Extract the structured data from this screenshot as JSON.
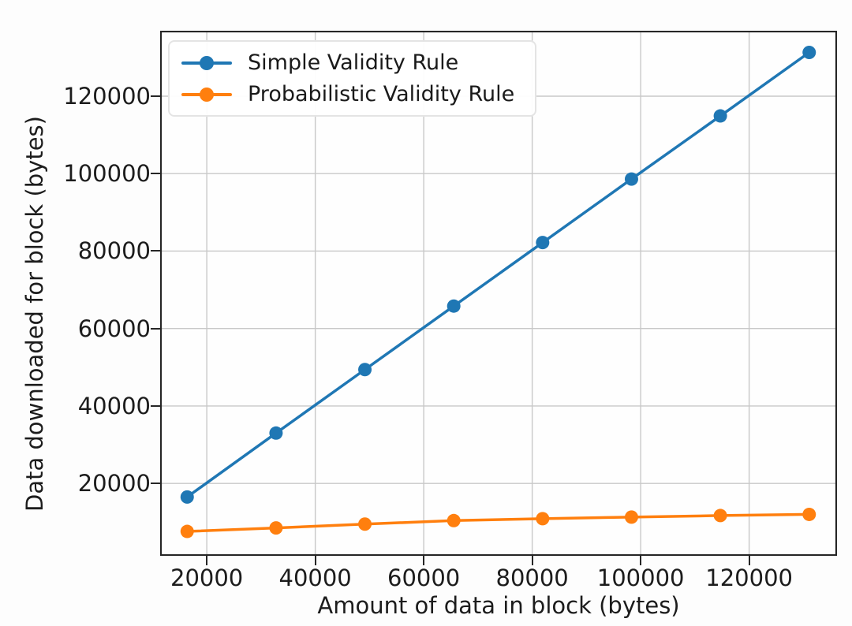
{
  "figure": {
    "title": "",
    "background_color": "#fdfdfd",
    "plot_background_color": "#fefefe",
    "grid_color": "#c8c8c8",
    "spine_color": "#262626",
    "text_color": "#1c1c1c"
  },
  "chart_data": {
    "type": "line",
    "title": "",
    "xlabel": "Amount of data in block (bytes)",
    "ylabel": "Data downloaded for block (bytes)",
    "x": [
      16384,
      32768,
      49152,
      65536,
      81920,
      98304,
      114688,
      131072
    ],
    "series": [
      {
        "name": "Simple Validity Rule",
        "color": "#1f77b4",
        "marker": "circle",
        "values": [
          16500,
          33000,
          49400,
          65800,
          82200,
          98600,
          114900,
          131300
        ]
      },
      {
        "name": "Probabilistic Validity Rule",
        "color": "#ff7f0e",
        "marker": "circle",
        "values": [
          7600,
          8500,
          9500,
          10400,
          10900,
          11300,
          11700,
          12000
        ]
      }
    ],
    "x_ticks": [
      20000,
      40000,
      60000,
      80000,
      100000,
      120000
    ],
    "y_ticks": [
      20000,
      40000,
      60000,
      80000,
      100000,
      120000
    ],
    "xlim": [
      11400,
      136200
    ],
    "ylim": [
      1300,
      136900
    ],
    "grid": true,
    "legend_position": "upper left"
  }
}
